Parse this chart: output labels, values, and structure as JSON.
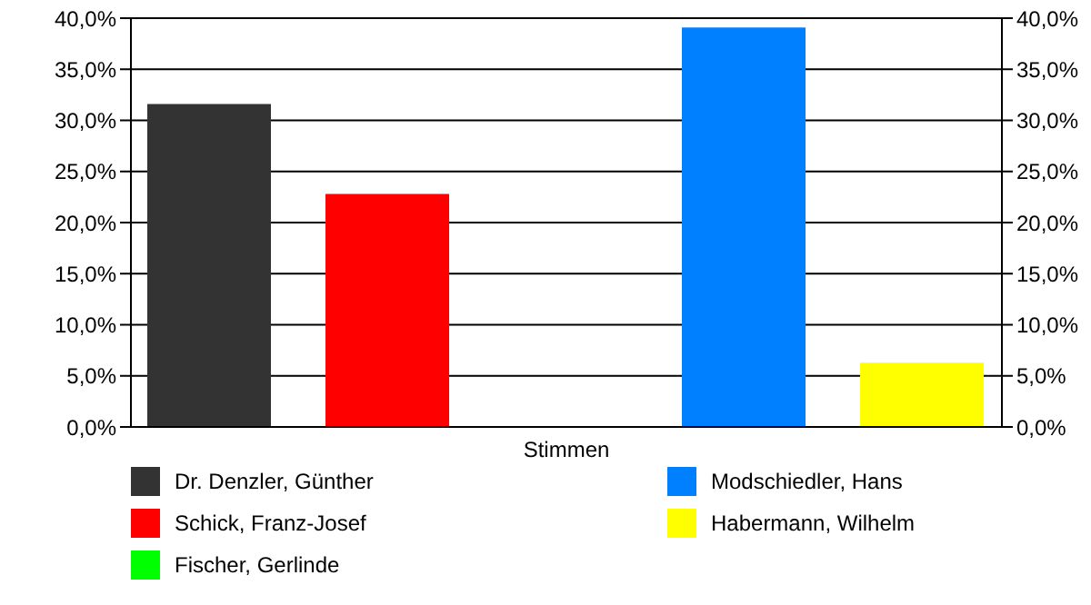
{
  "chart_data": {
    "type": "bar",
    "categories": [
      "Stimmen"
    ],
    "series": [
      {
        "name": "Dr. Denzler, Günther",
        "color": "#333333",
        "values": [
          31.6
        ]
      },
      {
        "name": "Schick, Franz-Josef",
        "color": "#ff0000",
        "values": [
          22.8
        ]
      },
      {
        "name": "Fischer, Gerlinde",
        "color": "#00ff00",
        "values": [
          0
        ]
      },
      {
        "name": "Modschiedler, Hans",
        "color": "#0080ff",
        "values": [
          39.1
        ]
      },
      {
        "name": "Habermann, Wilhelm",
        "color": "#ffff00",
        "values": [
          6.3
        ]
      }
    ],
    "ylim": [
      0,
      40
    ],
    "yticks": [
      {
        "value": 0,
        "label": "0,0%"
      },
      {
        "value": 5,
        "label": "5,0%"
      },
      {
        "value": 10,
        "label": "10,0%"
      },
      {
        "value": 15,
        "label": "15,0%"
      },
      {
        "value": 20,
        "label": "20,0%"
      },
      {
        "value": 25,
        "label": "25,0%"
      },
      {
        "value": 30,
        "label": "30,0%"
      },
      {
        "value": 35,
        "label": "35,0%"
      },
      {
        "value": 40,
        "label": "40,0%"
      }
    ],
    "grid": "y",
    "legend": "bottom"
  }
}
